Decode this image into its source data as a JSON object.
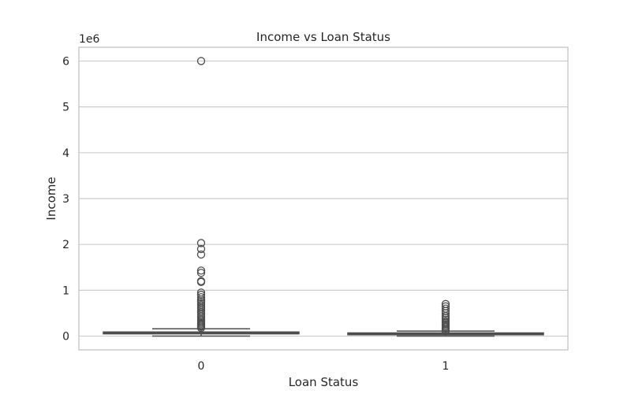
{
  "chart_data": {
    "type": "boxplot",
    "title": "Income vs Loan Status",
    "xlabel": "Loan Status",
    "ylabel": "Income",
    "y_offset_label": "1e6",
    "categories": [
      "0",
      "1"
    ],
    "yticks": [
      0,
      1,
      2,
      3,
      4,
      5,
      6
    ],
    "ytick_labels": [
      "0",
      "1",
      "2",
      "3",
      "4",
      "5",
      "6"
    ],
    "ylim": [
      -0.3,
      6.3
    ],
    "grid": "horizontal",
    "colors": {
      "box_fill": "#ffffff",
      "line": "#4d4d4d",
      "grid": "#cccccc",
      "frame": "#cccccc",
      "text": "#262626"
    },
    "boxes": [
      {
        "category": "0",
        "whisker_low": 0.0,
        "q1": 0.05,
        "median": 0.07,
        "q3": 0.09,
        "whisker_high": 0.16,
        "outliers": [
          6.0,
          2.03,
          1.9,
          1.78,
          1.43,
          1.38,
          1.2,
          1.18,
          0.95,
          0.9,
          0.85,
          0.8,
          0.76,
          0.72,
          0.68,
          0.64,
          0.6,
          0.56,
          0.52,
          0.48,
          0.44,
          0.4,
          0.36,
          0.33,
          0.3,
          0.27,
          0.24,
          0.21,
          0.18
        ]
      },
      {
        "category": "1",
        "whisker_low": 0.0,
        "q1": 0.03,
        "median": 0.05,
        "q3": 0.07,
        "whisker_high": 0.11,
        "outliers": [
          0.7,
          0.65,
          0.6,
          0.55,
          0.5,
          0.44,
          0.4,
          0.36,
          0.32,
          0.29,
          0.26,
          0.23,
          0.2,
          0.17,
          0.14,
          0.12
        ]
      }
    ]
  }
}
